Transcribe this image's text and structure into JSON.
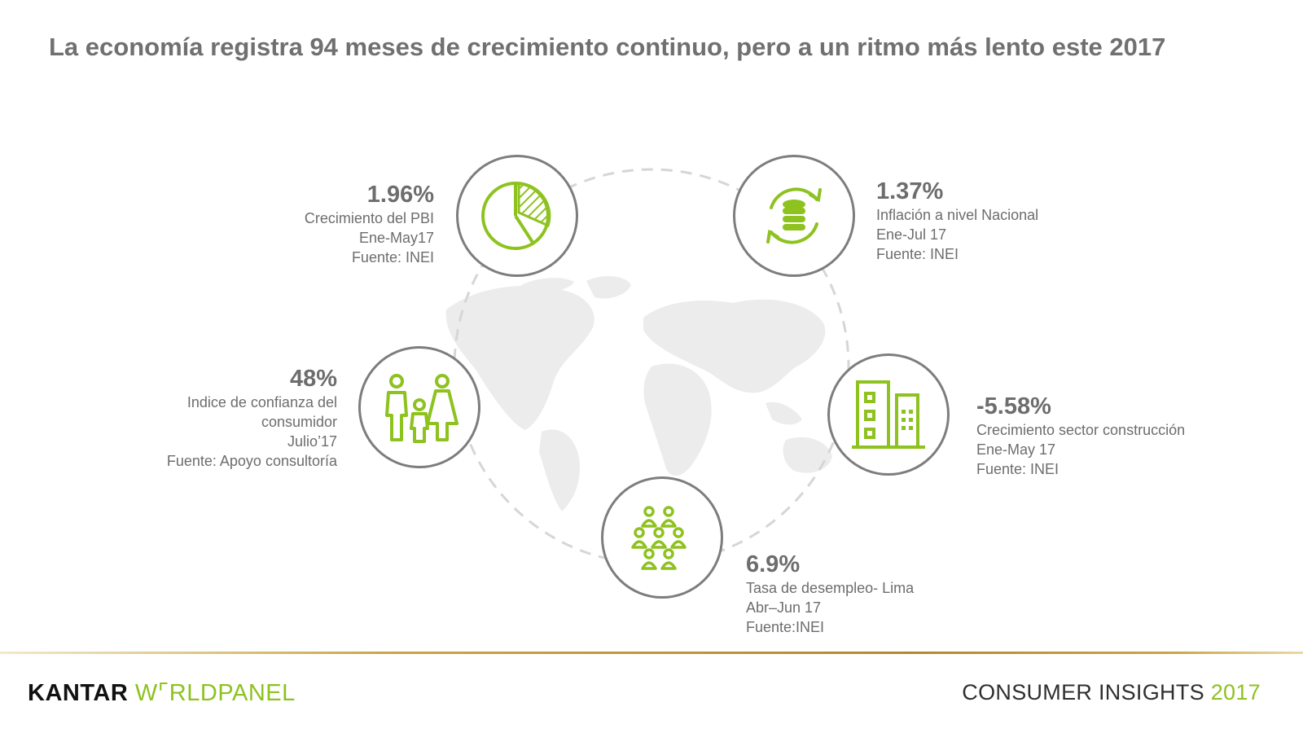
{
  "title": "La economía registra 94 meses de crecimiento continuo, pero a un ritmo más lento este 2017",
  "colors": {
    "accent": "#8dc21f",
    "circle_border": "#7d7d7d",
    "text": "#6d6d6d",
    "gold": "#b08b2e"
  },
  "stats": [
    {
      "id": "pbi",
      "value": "1.96%",
      "lines": [
        "Crecimiento del  PBI",
        "Ene-May17",
        "Fuente: INEI"
      ],
      "icon": "pie-chart-icon"
    },
    {
      "id": "inflacion",
      "value": "1.37%",
      "lines": [
        "Inflación a nivel Nacional",
        "Ene-Jul 17",
        "Fuente: INEI"
      ],
      "icon": "coins-cycle-icon"
    },
    {
      "id": "confianza",
      "value": "48%",
      "lines": [
        "Indice de confianza del",
        "consumidor",
        "Julio’17",
        "Fuente: Apoyo consultoría"
      ],
      "icon": "family-icon"
    },
    {
      "id": "construccion",
      "value": "-5.58%",
      "lines": [
        "Crecimiento sector construcción",
        "Ene-May 17",
        "Fuente: INEI"
      ],
      "icon": "buildings-icon"
    },
    {
      "id": "desempleo",
      "value": "6.9%",
      "lines": [
        "Tasa de desempleo- Lima",
        "Abr–Jun 17",
        "Fuente:INEI"
      ],
      "icon": "crowd-icon"
    }
  ],
  "footer": {
    "brand_part1": "KANTAR",
    "brand_part2": "W⌜RLDPANEL",
    "insights": "CONSUMER INSIGHTS",
    "insights_year": "2017"
  }
}
